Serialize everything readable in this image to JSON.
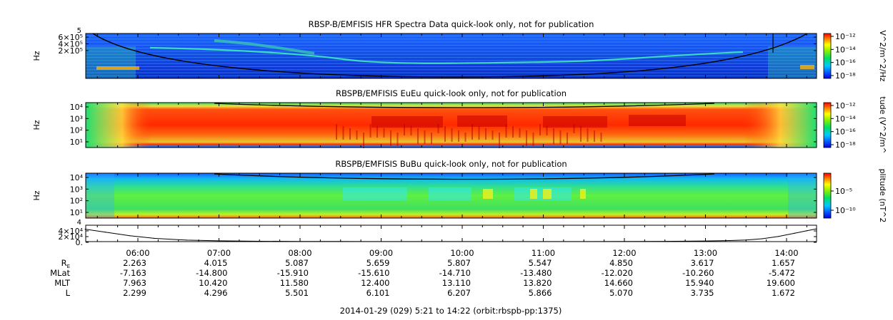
{
  "chart_data": [
    {
      "type": "heatmap",
      "title": "RBSP-B/EMFISIS  HFR Spectra Data quick-look only, not for publication",
      "ylabel": "Hz",
      "y_ticks": [
        "6×10⁵",
        "4×10⁵",
        "2×10⁵"
      ],
      "y_top_tick": "5",
      "colorbar_label": "V^2/m^2/Hz",
      "colorbar_ticks": [
        "10⁻¹²",
        "10⁻¹⁴",
        "10⁻¹⁶",
        "10⁻¹⁸"
      ]
    },
    {
      "type": "heatmap",
      "title": "RBSPB/EMFISIS  EuEu quick-look only, not for publication",
      "ylabel": "Hz",
      "y_ticks": [
        "10⁴",
        "10³",
        "10²",
        "10¹"
      ],
      "colorbar_label": "tude (V^2/m^",
      "colorbar_ticks": [
        "10⁻¹²",
        "10⁻¹⁴",
        "10⁻¹⁶",
        "10⁻¹⁸"
      ]
    },
    {
      "type": "heatmap",
      "title": "RBSPB/EMFISIS  BuBu quick-look only, not for publication",
      "ylabel": "Hz",
      "y_ticks": [
        "10⁴",
        "10³",
        "10²",
        "10¹"
      ],
      "colorbar_label": "plitude (nT^2",
      "colorbar_ticks": [
        "10⁻⁵",
        "10⁻¹⁰"
      ]
    },
    {
      "type": "line",
      "y_ticks": [
        "4×10⁴",
        "2×10⁴",
        "0."
      ],
      "y_top_tick": "4",
      "x": [
        5.35,
        5.6,
        5.9,
        6.2,
        6.6,
        7.0,
        7.5,
        8.0,
        8.5,
        9.0,
        9.5,
        10.0,
        10.5,
        11.0,
        11.5,
        12.0,
        12.5,
        13.0,
        13.3,
        13.5,
        13.7,
        13.9,
        14.1,
        14.25,
        14.37
      ],
      "values": [
        34000,
        26000,
        16000,
        9000,
        4200,
        2100,
        1000,
        500,
        300,
        200,
        150,
        150,
        150,
        200,
        250,
        400,
        800,
        1700,
        2900,
        4500,
        7800,
        14000,
        23000,
        30000,
        35000
      ],
      "ylim": [
        0,
        45000
      ]
    }
  ],
  "x_ticks": [
    "06:00",
    "07:00",
    "08:00",
    "09:00",
    "10:00",
    "11:00",
    "12:00",
    "13:00",
    "14:00"
  ],
  "ephemeris": {
    "labels": [
      "R",
      "MLat",
      "MLT",
      "L"
    ],
    "r_subscript": "E",
    "rows": [
      [
        "2.263",
        "4.015",
        "5.087",
        "5.659",
        "5.807",
        "5.547",
        "4.850",
        "3.617",
        "1.657"
      ],
      [
        "-7.163",
        "-14.800",
        "-15.910",
        "-15.610",
        "-14.710",
        "-13.480",
        "-12.020",
        "-10.260",
        "-5.472"
      ],
      [
        "7.963",
        "10.420",
        "11.580",
        "12.400",
        "13.110",
        "13.820",
        "14.660",
        "15.940",
        "19.600"
      ],
      [
        "2.299",
        "4.296",
        "5.501",
        "6.101",
        "6.207",
        "5.866",
        "5.070",
        "3.735",
        "1.672"
      ]
    ]
  },
  "footer": "2014-01-29 (029) 5:21 to 14:22 (orbit:rbspb-pp:1375)"
}
